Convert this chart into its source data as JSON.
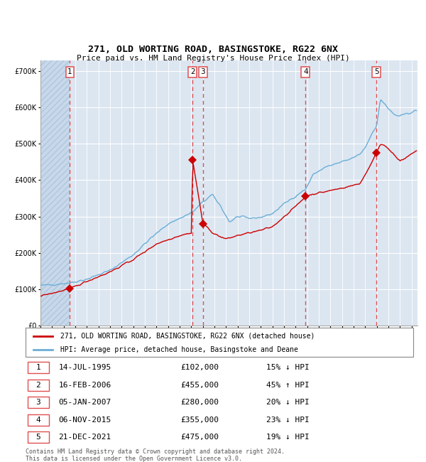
{
  "title": "271, OLD WORTING ROAD, BASINGSTOKE, RG22 6NX",
  "subtitle": "Price paid vs. HM Land Registry's House Price Index (HPI)",
  "legend_property": "271, OLD WORTING ROAD, BASINGSTOKE, RG22 6NX (detached house)",
  "legend_hpi": "HPI: Average price, detached house, Basingstoke and Deane",
  "footer": "Contains HM Land Registry data © Crown copyright and database right 2024.\nThis data is licensed under the Open Government Licence v3.0.",
  "sales": [
    {
      "num": 1,
      "date": "14-JUL-1995",
      "price": 102000,
      "pct": "15%",
      "dir": "↓",
      "x_year": 1995.54
    },
    {
      "num": 2,
      "date": "16-FEB-2006",
      "price": 455000,
      "pct": "45%",
      "dir": "↑",
      "x_year": 2006.12
    },
    {
      "num": 3,
      "date": "05-JAN-2007",
      "price": 280000,
      "pct": "20%",
      "dir": "↓",
      "x_year": 2007.01
    },
    {
      "num": 4,
      "date": "06-NOV-2015",
      "price": 355000,
      "pct": "23%",
      "dir": "↓",
      "x_year": 2015.85
    },
    {
      "num": 5,
      "date": "21-DEC-2021",
      "price": 475000,
      "pct": "19%",
      "dir": "↓",
      "x_year": 2021.97
    }
  ],
  "hpi_color": "#6baed6",
  "price_color": "#cc0000",
  "sale_marker_color": "#cc0000",
  "dashed_line_color": "#e05050",
  "bg_color": "#dce6f1",
  "grid_color": "#ffffff",
  "ylim": [
    0,
    730000
  ],
  "xlim_start": 1993.0,
  "xlim_end": 2025.5,
  "yticks": [
    0,
    100000,
    200000,
    300000,
    400000,
    500000,
    600000,
    700000
  ]
}
